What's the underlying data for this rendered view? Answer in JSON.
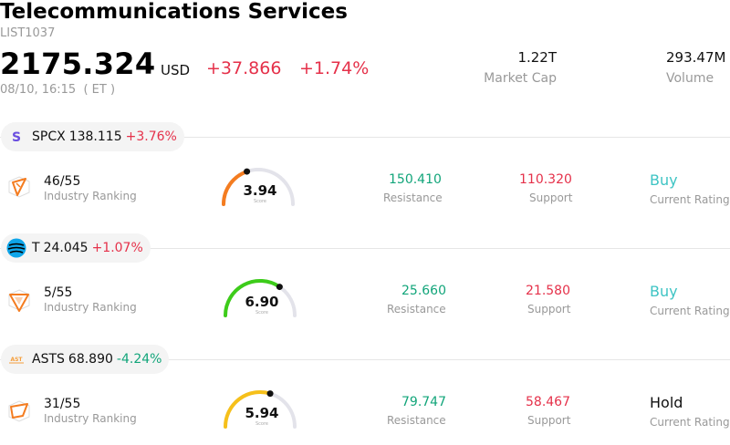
{
  "header": {
    "title": "Telecommunications Services",
    "code": "LIST1037",
    "price": "2175.324",
    "currency": "USD",
    "change": "+37.866",
    "change_pct": "+1.74%",
    "timestamp": "08/10, 16:15  ( ET )",
    "market_cap_value": "1.22T",
    "market_cap_label": "Market Cap",
    "volume_value": "293.47M",
    "volume_label": "Volume"
  },
  "stocks": [
    {
      "symbol": "SPCX",
      "price": "138.115",
      "change_pct": "+3.76%",
      "direction": "up",
      "logo_icon": "spcx-logo-icon",
      "logo_color": "#6b4fe0",
      "rank": "46/55",
      "rank_label": "Industry Ranking",
      "score": "3.94",
      "score_fraction": 0.394,
      "score_label": "Score",
      "score_color": "#f47c20",
      "resistance": "150.410",
      "resistance_label": "Resistance",
      "support": "110.320",
      "support_label": "Support",
      "rating": "Buy",
      "rating_label": "Current Rating"
    },
    {
      "symbol": "T",
      "price": "24.045",
      "change_pct": "+1.07%",
      "direction": "up",
      "logo_icon": "att-logo-icon",
      "logo_color": "#0ea5e9",
      "rank": "5/55",
      "rank_label": "Industry Ranking",
      "score": "6.90",
      "score_fraction": 0.69,
      "score_label": "Score",
      "score_color": "#3dcc1a",
      "resistance": "25.660",
      "resistance_label": "Resistance",
      "support": "21.580",
      "support_label": "Support",
      "rating": "Buy",
      "rating_label": "Current Rating"
    },
    {
      "symbol": "ASTS",
      "price": "68.890",
      "change_pct": "-4.24%",
      "direction": "down",
      "logo_icon": "asts-logo-icon",
      "logo_color": "#f59e3b",
      "rank": "31/55",
      "rank_label": "Industry Ranking",
      "score": "5.94",
      "score_fraction": 0.594,
      "score_label": "Score",
      "score_color": "#f6c01a",
      "resistance": "79.747",
      "resistance_label": "Resistance",
      "support": "58.467",
      "support_label": "Support",
      "rating": "Hold",
      "rating_label": "Current Rating"
    }
  ]
}
